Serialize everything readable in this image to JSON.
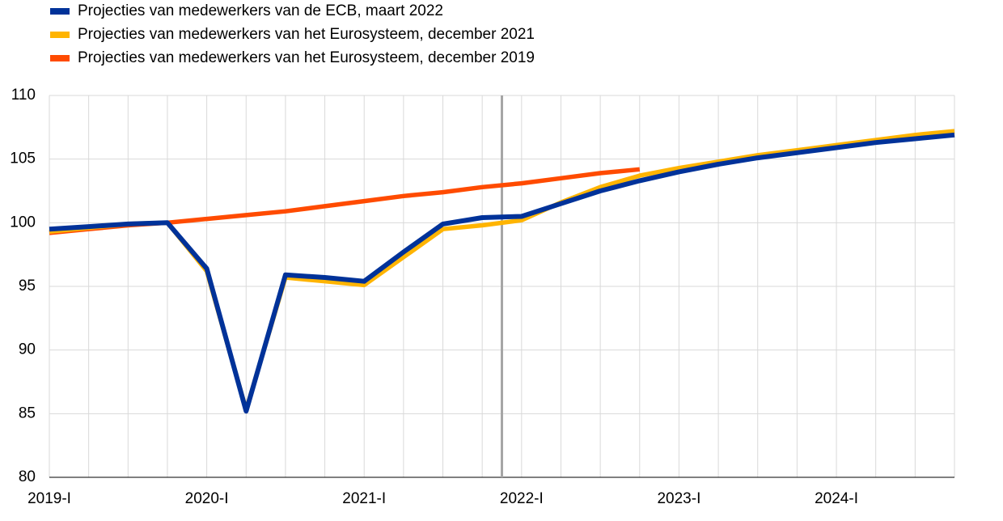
{
  "chart_data": {
    "type": "line",
    "categories": [
      "2019-I",
      null,
      null,
      null,
      "2020-I",
      null,
      null,
      null,
      "2021-I",
      null,
      null,
      null,
      "2022-I",
      null,
      null,
      null,
      "2023-I",
      null,
      null,
      null,
      "2024-I",
      null,
      null,
      null
    ],
    "series": [
      {
        "name": "Projecties van medewerkers van de ECB, maart 2022",
        "color": "#003299",
        "values": [
          99.5,
          99.7,
          99.9,
          100.0,
          96.4,
          85.2,
          95.9,
          95.7,
          95.4,
          97.7,
          99.9,
          100.4,
          100.5,
          101.5,
          102.5,
          103.3,
          104.0,
          104.6,
          105.1,
          105.5,
          105.9,
          106.3,
          106.6,
          106.9
        ]
      },
      {
        "name": "Projecties van medewerkers van het Eurosysteem, december 2021",
        "color": "#ffb400",
        "values": [
          99.3,
          99.6,
          99.9,
          100.0,
          96.2,
          85.3,
          95.7,
          95.4,
          95.1,
          97.3,
          99.5,
          99.8,
          100.2,
          101.6,
          102.8,
          103.7,
          104.3,
          104.8,
          105.3,
          105.7,
          106.1,
          106.5,
          106.9,
          107.2
        ]
      },
      {
        "name": "Projecties van medewerkers van het Eurosysteem, december 2019",
        "color": "#ff4b00",
        "values": [
          99.2,
          99.5,
          99.8,
          100.0,
          100.3,
          100.6,
          100.9,
          101.3,
          101.7,
          102.1,
          102.4,
          102.8,
          103.1,
          103.5,
          103.9,
          104.2,
          null,
          null,
          null,
          null,
          null,
          null,
          null,
          null
        ]
      }
    ],
    "ylim": [
      80,
      110
    ],
    "yticks": [
      80,
      85,
      90,
      95,
      100,
      105,
      110
    ],
    "grid": true
  }
}
